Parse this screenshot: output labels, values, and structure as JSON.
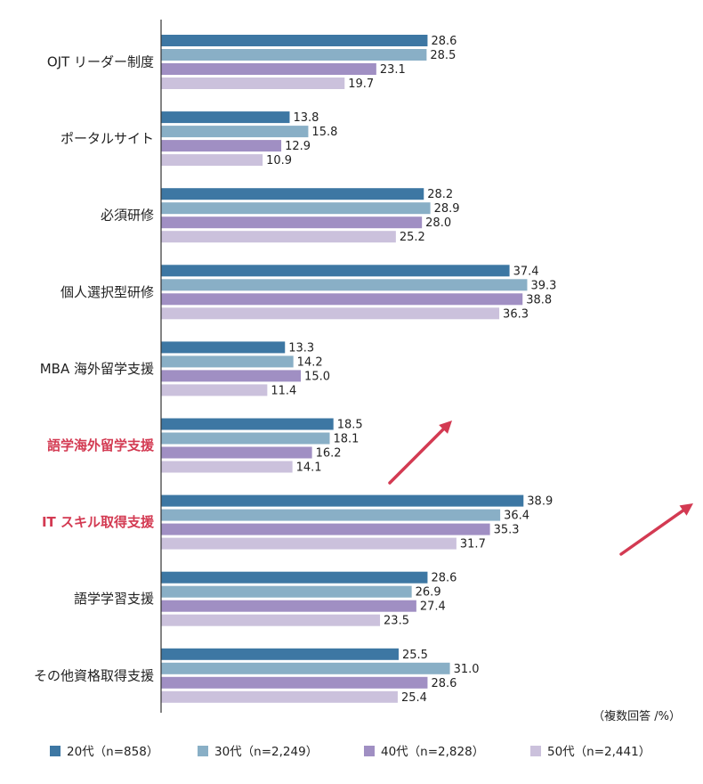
{
  "chart_data": {
    "type": "bar",
    "orientation": "horizontal",
    "categories": [
      "OJT リーダー制度",
      "ポータルサイト",
      "必須研修",
      "個人選択型研修",
      "MBA 海外留学支援",
      "語学海外留学支援",
      "IT スキル取得支援",
      "語学学習支援",
      "その他資格取得支援"
    ],
    "highlighted_categories": [
      "語学海外留学支援",
      "IT スキル取得支援"
    ],
    "series": [
      {
        "name": "20代（n=858）",
        "values": [
          28.6,
          13.8,
          28.2,
          37.4,
          13.3,
          18.5,
          38.9,
          28.6,
          25.5
        ]
      },
      {
        "name": "30代（n=2,249）",
        "values": [
          28.5,
          15.8,
          28.9,
          39.3,
          14.2,
          18.1,
          36.4,
          26.9,
          31.0
        ]
      },
      {
        "name": "40代（n=2,828）",
        "values": [
          23.1,
          12.9,
          28.0,
          38.8,
          15.0,
          16.2,
          35.3,
          27.4,
          28.6
        ]
      },
      {
        "name": "50代（n=2,441）",
        "values": [
          19.7,
          10.9,
          25.2,
          36.3,
          11.4,
          14.1,
          31.7,
          23.5,
          25.4
        ]
      }
    ],
    "unit_note": "（複数回答 /%）",
    "xlim": [
      0,
      40
    ],
    "legend_position": "bottom",
    "annotations": [
      {
        "type": "arrow-up",
        "near_category": "語学海外留学支援"
      },
      {
        "type": "arrow-up",
        "near_category": "IT スキル取得支援"
      }
    ]
  },
  "colors": {
    "series": [
      "#3d77a3",
      "#89afc6",
      "#a08fc3",
      "#cbc1dc"
    ],
    "highlight_text": "#d33a52",
    "arrow": "#d33a52",
    "axis": "#333333"
  }
}
